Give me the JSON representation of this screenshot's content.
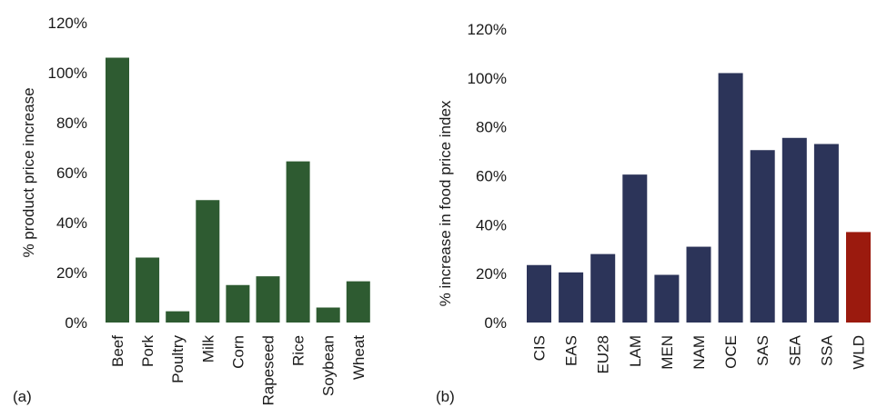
{
  "chart_data": [
    {
      "type": "bar",
      "panel_label": "(a)",
      "ylabel": "% product price increase",
      "ylim": [
        0,
        120
      ],
      "yticks": [
        "0%",
        "20%",
        "40%",
        "60%",
        "80%",
        "100%",
        "120%"
      ],
      "categories": [
        "Beef",
        "Pork",
        "Poultry",
        "Milk",
        "Corn",
        "Rapeseed",
        "Rice",
        "Soybean",
        "Wheat"
      ],
      "values": [
        106,
        26,
        4.5,
        49,
        15,
        18.5,
        64.5,
        6,
        16.5
      ],
      "colors": [
        "#2e5b31",
        "#2e5b31",
        "#2e5b31",
        "#2e5b31",
        "#2e5b31",
        "#2e5b31",
        "#2e5b31",
        "#2e5b31",
        "#2e5b31"
      ],
      "grid": false
    },
    {
      "type": "bar",
      "panel_label": "(b)",
      "ylabel": "% increase in food price index",
      "ylim": [
        0,
        120
      ],
      "yticks": [
        "0%",
        "20%",
        "40%",
        "60%",
        "80%",
        "100%",
        "120%"
      ],
      "categories": [
        "CIS",
        "EAS",
        "EU28",
        "LAM",
        "MEN",
        "NAM",
        "OCE",
        "SAS",
        "SEA",
        "SSA",
        "WLD"
      ],
      "values": [
        23.5,
        20.5,
        28,
        60.5,
        19.5,
        31,
        102,
        70.5,
        75.5,
        73,
        37
      ],
      "colors": [
        "#2c3459",
        "#2c3459",
        "#2c3459",
        "#2c3459",
        "#2c3459",
        "#2c3459",
        "#2c3459",
        "#2c3459",
        "#2c3459",
        "#2c3459",
        "#9b1a0e"
      ],
      "grid": false
    }
  ]
}
